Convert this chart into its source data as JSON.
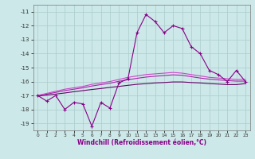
{
  "xlabel": "Windchill (Refroidissement éolien,°C)",
  "ylabel": "",
  "bg_color": "#cce8e8",
  "grid_color": "#aacccc",
  "line_color_main": "#880088",
  "line_color_s1": "#cc44cc",
  "line_color_s2": "#aa22aa",
  "line_color_s3": "#660066",
  "xlim_min": -0.5,
  "xlim_max": 23.5,
  "ylim_min": -19.5,
  "ylim_max": -10.5,
  "yticks": [
    -19,
    -18,
    -17,
    -16,
    -15,
    -14,
    -13,
    -12,
    -11
  ],
  "xticks": [
    0,
    1,
    2,
    3,
    4,
    5,
    6,
    7,
    8,
    9,
    10,
    11,
    12,
    13,
    14,
    15,
    16,
    17,
    18,
    19,
    20,
    21,
    22,
    23
  ],
  "main_y": [
    -17.0,
    -17.4,
    -17.0,
    -18.0,
    -17.5,
    -17.6,
    -19.2,
    -17.5,
    -17.9,
    -16.1,
    -15.8,
    -12.5,
    -11.2,
    -11.7,
    -12.5,
    -12.0,
    -12.2,
    -13.5,
    -14.0,
    -15.2,
    -15.5,
    -16.0,
    -15.2,
    -16.0
  ],
  "s1_y": [
    -17.0,
    -16.85,
    -16.7,
    -16.55,
    -16.45,
    -16.35,
    -16.2,
    -16.1,
    -16.0,
    -15.85,
    -15.7,
    -15.6,
    -15.5,
    -15.45,
    -15.4,
    -15.35,
    -15.4,
    -15.5,
    -15.6,
    -15.7,
    -15.75,
    -15.8,
    -15.85,
    -15.85
  ],
  "s2_y": [
    -17.0,
    -16.9,
    -16.78,
    -16.65,
    -16.55,
    -16.45,
    -16.32,
    -16.22,
    -16.12,
    -15.98,
    -15.87,
    -15.77,
    -15.68,
    -15.62,
    -15.57,
    -15.52,
    -15.55,
    -15.65,
    -15.75,
    -15.83,
    -15.88,
    -15.93,
    -15.97,
    -15.97
  ],
  "s3_y": [
    -17.05,
    -16.97,
    -16.9,
    -16.82,
    -16.73,
    -16.65,
    -16.57,
    -16.5,
    -16.42,
    -16.35,
    -16.27,
    -16.2,
    -16.15,
    -16.1,
    -16.07,
    -16.03,
    -16.03,
    -16.07,
    -16.1,
    -16.15,
    -16.18,
    -16.22,
    -16.22,
    -16.15
  ]
}
